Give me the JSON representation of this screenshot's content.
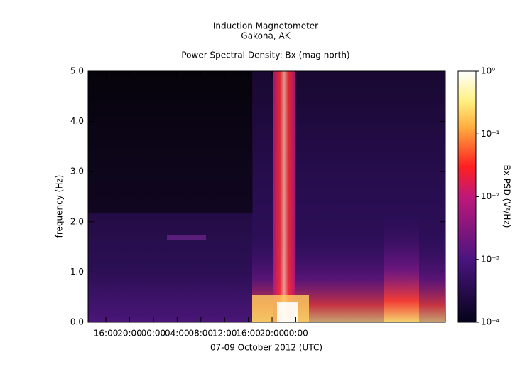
{
  "chart_data": {
    "type": "spectrogram",
    "title": "Induction Magnetometer",
    "subtitle": "Gakona, AK",
    "plot_title": "Power Spectral Density: Bx (mag north)",
    "xlabel": "07-09 October 2012 (UTC)",
    "ylabel": "frequency (Hz)",
    "xlim": [
      13,
      73.2
    ],
    "xticks": [
      {
        "value": 16,
        "label": "16:00"
      },
      {
        "value": 20,
        "label": "20:00"
      },
      {
        "value": 24,
        "label": "00:00"
      },
      {
        "value": 28,
        "label": "04:00"
      },
      {
        "value": 32,
        "label": "08:00"
      },
      {
        "value": 36,
        "label": "12:00"
      },
      {
        "value": 40,
        "label": "16:00"
      },
      {
        "value": 44,
        "label": "20:00"
      },
      {
        "value": 48,
        "label": "00:00"
      }
    ],
    "ylim": [
      0,
      5
    ],
    "yticks": [
      {
        "value": 0,
        "label": "0.0"
      },
      {
        "value": 1,
        "label": "1.0"
      },
      {
        "value": 2,
        "label": "2.0"
      },
      {
        "value": 3,
        "label": "3.0"
      },
      {
        "value": 4,
        "label": "4.0"
      },
      {
        "value": 5,
        "label": "5.0"
      }
    ],
    "colorbar_label": "Bx PSD (V²/Hz)",
    "color_log": true,
    "colorlim": [
      0.0001,
      1
    ],
    "colorticks": [
      {
        "value": 0.0001,
        "label": "10⁻⁴"
      },
      {
        "value": 0.001,
        "label": "10⁻³"
      },
      {
        "value": 0.01,
        "label": "10⁻²"
      },
      {
        "value": 0.1,
        "label": "10⁻¹"
      },
      {
        "value": 1,
        "label": "10⁰"
      }
    ]
  }
}
